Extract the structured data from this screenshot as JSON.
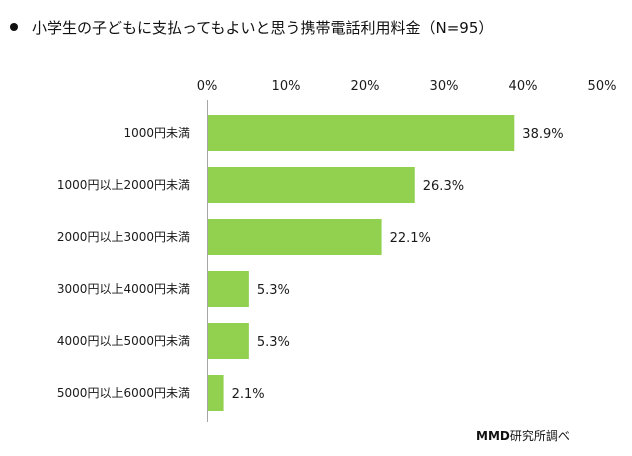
{
  "title": "小学生の子どもに支払ってもよいと思う携帯電話利用料金（N=95）",
  "source": {
    "brand": "MMD",
    "suffix": "研究所調べ"
  },
  "colors": {
    "bar": "#92d050",
    "axis": "#a6a6a6",
    "text": "#1a1a1a"
  },
  "chart_data": {
    "type": "bar",
    "orientation": "horizontal",
    "categories": [
      "1000円未満",
      "1000円以上2000円未満",
      "2000円以上3000円未満",
      "3000円以上4000円未満",
      "4000円以上5000円未満",
      "5000円以上6000円未満"
    ],
    "values": [
      38.9,
      26.3,
      22.1,
      5.3,
      5.3,
      2.1
    ],
    "value_labels": [
      "38.9%",
      "26.3%",
      "22.1%",
      "5.3%",
      "5.3%",
      "2.1%"
    ],
    "xlim": [
      0,
      50
    ],
    "xticks": [
      0,
      10,
      20,
      30,
      40,
      50
    ],
    "xtick_labels": [
      "0%",
      "10%",
      "20%",
      "30%",
      "40%",
      "50%"
    ],
    "x_axis_position": "top",
    "grid": false,
    "legend": "none"
  }
}
